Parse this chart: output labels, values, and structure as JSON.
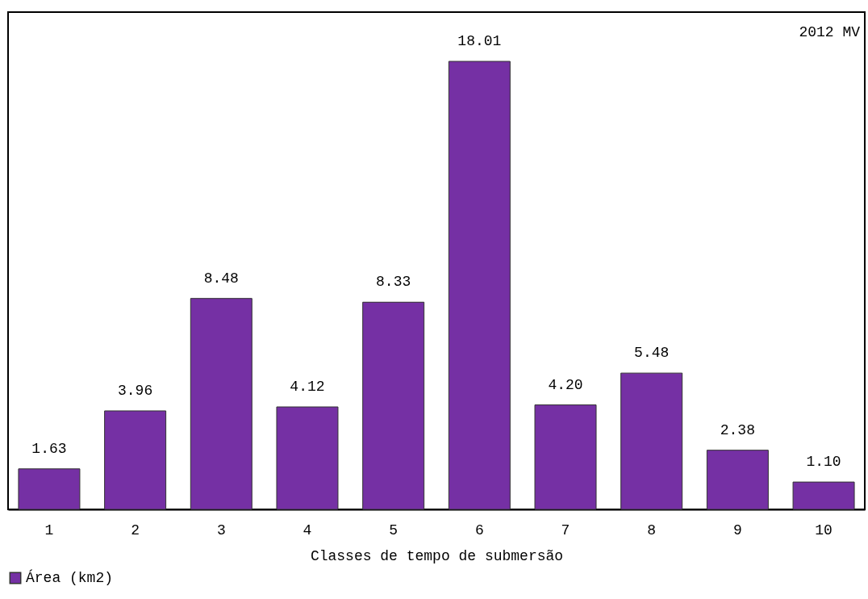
{
  "chart_data": {
    "type": "bar",
    "xlabel": "Classes de tempo de submersão",
    "categories": [
      "1",
      "2",
      "3",
      "4",
      "5",
      "6",
      "7",
      "8",
      "9",
      "10"
    ],
    "series": [
      {
        "name": "Área (km2)",
        "color": "#7530a4",
        "values": [
          1.63,
          3.96,
          8.48,
          4.12,
          8.33,
          18.01,
          4.2,
          5.48,
          2.38,
          1.1
        ],
        "value_labels": [
          "1.63",
          "3.96",
          "8.48",
          "4.12",
          "8.33",
          "18.01",
          "4.20",
          "5.48",
          "2.38",
          "1.10"
        ]
      }
    ],
    "tick_labels": "x",
    "legend": "bottom",
    "grid": false,
    "annotations": [
      "2012 MV"
    ]
  }
}
